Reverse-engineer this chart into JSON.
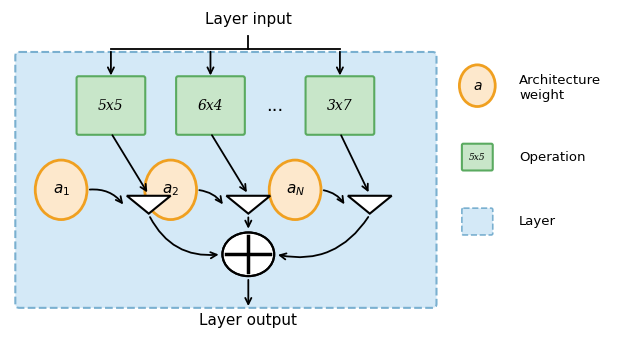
{
  "layer_bg_color": "#d4e9f7",
  "layer_border_color": "#7ab0d0",
  "op_color": "#c8e6c9",
  "op_border_color": "#5aaa60",
  "weight_color": "#fde8cc",
  "weight_border_color": "#f0a020",
  "arrow_color": "#111111",
  "op_labels": [
    "5x5",
    "6x4",
    "3x7"
  ],
  "weight_labels": [
    "$a_1$",
    "$a_2$",
    "$a_N$"
  ],
  "dots": "...",
  "layer_input": "Layer input",
  "layer_output": "Layer output",
  "legend_weight_label1": "Architecture",
  "legend_weight_label2": "weight",
  "legend_op_label": "Operation",
  "legend_layer_label": "Layer",
  "legend_op_text": "5x5"
}
